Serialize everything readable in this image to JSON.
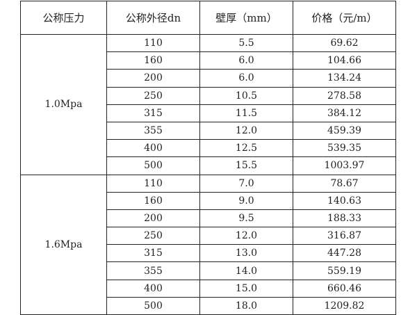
{
  "headers": [
    "公称压力",
    "公称外径dn",
    "壁厚（mm）",
    "价格（元/m）"
  ],
  "groups": [
    {
      "pressure": "1.0Mpa",
      "rows": [
        [
          "110",
          "5.5",
          "69.62"
        ],
        [
          "160",
          "6.0",
          "104.66"
        ],
        [
          "200",
          "6.0",
          "134.24"
        ],
        [
          "250",
          "10.5",
          "278.58"
        ],
        [
          "315",
          "11.5",
          "384.12"
        ],
        [
          "355",
          "12.0",
          "459.39"
        ],
        [
          "400",
          "12.5",
          "539.35"
        ],
        [
          "500",
          "15.5",
          "1003.97"
        ]
      ]
    },
    {
      "pressure": "1.6Mpa",
      "rows": [
        [
          "110",
          "7.0",
          "78.67"
        ],
        [
          "160",
          "9.0",
          "140.63"
        ],
        [
          "200",
          "9.5",
          "188.33"
        ],
        [
          "250",
          "12.0",
          "316.87"
        ],
        [
          "315",
          "13.0",
          "447.28"
        ],
        [
          "355",
          "14.0",
          "559.19"
        ],
        [
          "400",
          "15.0",
          "660.46"
        ],
        [
          "500",
          "18.0",
          "1209.82"
        ]
      ]
    }
  ]
}
